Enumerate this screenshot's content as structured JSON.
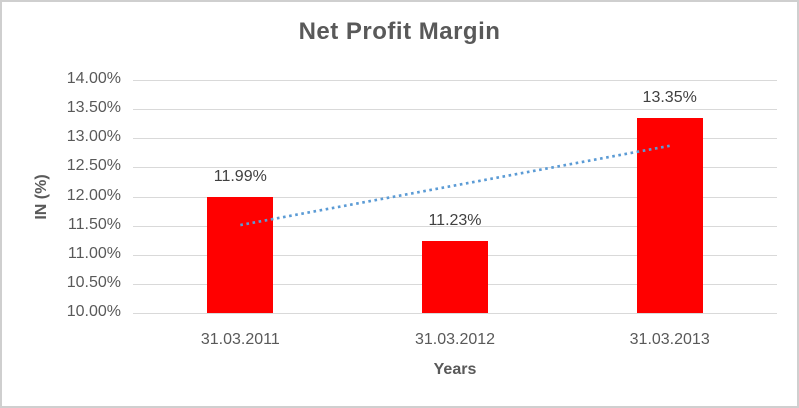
{
  "chart_data": {
    "type": "bar",
    "title": "Net Profit Margin",
    "xlabel": "Years",
    "ylabel": "IN (%)",
    "categories": [
      "31.03.2011",
      "31.03.2012",
      "31.03.2013"
    ],
    "values": [
      11.99,
      11.23,
      13.35
    ],
    "data_labels": [
      "11.99%",
      "11.23%",
      "13.35%"
    ],
    "unit": "%",
    "ylim": [
      10.0,
      14.0
    ],
    "ytick_step": 0.5,
    "yticks": [
      {
        "label": "14.00%",
        "value": 14.0
      },
      {
        "label": "13.50%",
        "value": 13.5
      },
      {
        "label": "13.00%",
        "value": 13.0
      },
      {
        "label": "12.50%",
        "value": 12.5
      },
      {
        "label": "12.00%",
        "value": 12.0
      },
      {
        "label": "11.50%",
        "value": 11.5
      },
      {
        "label": "11.00%",
        "value": 11.0
      },
      {
        "label": "10.50%",
        "value": 10.5
      },
      {
        "label": "10.00%",
        "value": 10.0
      }
    ],
    "grid": true,
    "legend": false,
    "trendline": {
      "type": "linear",
      "style": "dotted",
      "start_value": 11.51,
      "end_value": 12.87
    },
    "colors": {
      "bar": "#ff0000",
      "trendline": "#5b9bd5",
      "gridline": "#d9d9d9",
      "axis_text": "#595959",
      "data_label_text": "#404040",
      "title_text": "#595959",
      "frame_border": "#cfcfcf",
      "background": "#ffffff"
    }
  }
}
